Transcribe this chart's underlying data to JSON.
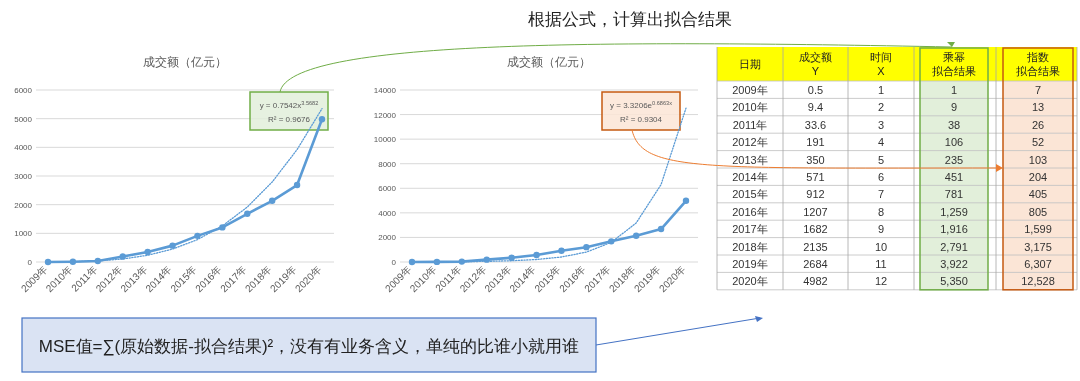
{
  "chart_data": [
    {
      "type": "line",
      "title": "成交额（亿元）",
      "categories": [
        "2009年",
        "2010年",
        "2011年",
        "2012年",
        "2013年",
        "2014年",
        "2015年",
        "2016年",
        "2017年",
        "2018年",
        "2019年",
        "2020年"
      ],
      "marker": "circle",
      "grid": "y",
      "ylim": [
        0,
        6000
      ],
      "yticks": [
        0,
        1000,
        2000,
        3000,
        4000,
        5000,
        6000
      ],
      "series": [
        {
          "color": "#5b9bd5",
          "values": [
            0.5,
            9.4,
            33.6,
            191,
            350,
            571,
            912,
            1207,
            1682,
            2135,
            2684,
            4982
          ]
        },
        {
          "type": "line",
          "color": "#5b9bd5",
          "line_style": "dotted",
          "marker": "none",
          "values": [
            1,
            9,
            38,
            106,
            235,
            451,
            781,
            1259,
            1916,
            2791,
            3922,
            5350
          ]
        }
      ],
      "annotations": [
        "y = 0.7542x$^{3.5682}$",
        "R² = 0.9676"
      ]
    },
    {
      "type": "line",
      "title": "成交额（亿元）",
      "categories": [
        "2009年",
        "2010年",
        "2011年",
        "2012年",
        "2013年",
        "2014年",
        "2015年",
        "2016年",
        "2017年",
        "2018年",
        "2019年",
        "2020年"
      ],
      "marker": "circle",
      "grid": "y",
      "ylim": [
        0,
        14000
      ],
      "yticks": [
        0,
        2000,
        4000,
        6000,
        8000,
        10000,
        12000,
        14000
      ],
      "series": [
        {
          "color": "#5b9bd5",
          "values": [
            0.5,
            9.4,
            33.6,
            191,
            350,
            571,
            912,
            1207,
            1682,
            2135,
            2684,
            4982
          ]
        },
        {
          "type": "line",
          "color": "#5b9bd5",
          "line_style": "dotted",
          "marker": "none",
          "values": [
            7,
            13,
            26,
            52,
            103,
            204,
            405,
            805,
            1599,
            3175,
            6307,
            12528
          ]
        }
      ],
      "annotations": [
        "y = 3.3206e$^{0.6863x}$",
        "R² = 0.9304"
      ]
    },
    {
      "type": "heatmap",
      "ylabel": "日期",
      "categories": [
        "成交额\nY",
        "时间\nX",
        "乘幂拟合结果",
        "指数拟合结果"
      ],
      "colors": [
        "#ffffff",
        "#ffffff",
        "#e2efda",
        "#fbe5d6"
      ],
      "y_categories": [
        "2009年",
        "2010年",
        "2011年",
        "2012年",
        "2013年",
        "2014年",
        "2015年",
        "2016年",
        "2017年",
        "2018年",
        "2019年",
        "2020年"
      ],
      "cells": [
        [
          0.5,
          1,
          1,
          7
        ],
        [
          9.4,
          2,
          9,
          13
        ],
        [
          33.6,
          3,
          38,
          26
        ],
        [
          191,
          4,
          106,
          52
        ],
        [
          350,
          5,
          235,
          103
        ],
        [
          571,
          6,
          451,
          204
        ],
        [
          912,
          7,
          781,
          405
        ],
        [
          1207,
          8,
          1259,
          805
        ],
        [
          1682,
          9,
          1916,
          1599
        ],
        [
          2135,
          10,
          2791,
          3175
        ],
        [
          2684,
          11,
          3922,
          6307
        ],
        [
          4982,
          12,
          5350,
          12528
        ]
      ],
      "cell_labels": [
        [
          "0.5",
          "1",
          "1",
          "7"
        ],
        [
          "9.4",
          "2",
          "9",
          "13"
        ],
        [
          "33.6",
          "3",
          "38",
          "26"
        ],
        [
          "191",
          "4",
          "106",
          "52"
        ],
        [
          "350",
          "5",
          "235",
          "103"
        ],
        [
          "571",
          "6",
          "451",
          "204"
        ],
        [
          "912",
          "7",
          "781",
          "405"
        ],
        [
          "1207",
          "8",
          "1,259",
          "805"
        ],
        [
          "1682",
          "9",
          "1,916",
          "1,599"
        ],
        [
          "2135",
          "10",
          "2,791",
          "3,175"
        ],
        [
          "2684",
          "11",
          "3,922",
          "6,307"
        ],
        [
          "4982",
          "12",
          "5,350",
          "12,528"
        ]
      ],
      "annotations": [
        "根据公式，计算出拟合结果",
        "MSE值=∑(原始数据-拟合结果)²，没有有业务含义，单纯的比谁小就用谁"
      ]
    }
  ]
}
